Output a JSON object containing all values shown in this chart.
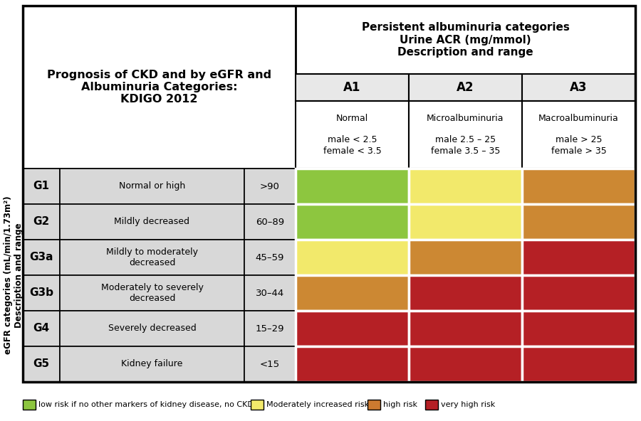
{
  "title_left": "Prognosis of CKD and by eGFR and\nAlbuminuria Categories:\nKDIGO 2012",
  "top_header": "Persistent albuminuria categories\nUrine ACR (mg/mmol)\nDescription and range",
  "col_headers": [
    "A1",
    "A2",
    "A3"
  ],
  "col_subheader1": [
    "Normal",
    "Microalbuminuria",
    "Macroalbuminuria"
  ],
  "col_subheader2": [
    "male < 2.5\nfemale < 3.5",
    "male 2.5 – 25\nfemale 3.5 – 35",
    "male > 25\nfemale > 35"
  ],
  "row_labels": [
    "G1",
    "G2",
    "G3a",
    "G3b",
    "G4",
    "G5"
  ],
  "row_desc": [
    "Normal or high",
    "Mildly decreased",
    "Mildly to moderately\ndecreased",
    "Moderately to severely\ndecreased",
    "Severely decreased",
    "Kidney failure"
  ],
  "row_range": [
    ">90",
    "60–89",
    "45–59",
    "30–44",
    "15–29",
    "<15"
  ],
  "y_axis_label": "eGFR categories (mL/min/1.73m²)\nDescription and range",
  "colors": {
    "green": "#8dc63f",
    "yellow": "#f2e96b",
    "orange": "#cc7a30",
    "dark_red": "#b52025",
    "light_orange": "#cc8833",
    "header_bg": "#e8e8e8",
    "border": "#000000",
    "white": "#ffffff",
    "row_bg": "#d8d8d8"
  },
  "cell_colors": [
    [
      "green",
      "yellow",
      "light_orange"
    ],
    [
      "green",
      "yellow",
      "light_orange"
    ],
    [
      "yellow",
      "light_orange",
      "dark_red"
    ],
    [
      "light_orange",
      "dark_red",
      "dark_red"
    ],
    [
      "dark_red",
      "dark_red",
      "dark_red"
    ],
    [
      "dark_red",
      "dark_red",
      "dark_red"
    ]
  ],
  "legend_items": [
    {
      "color": "#8dc63f",
      "label": "low risk if no other markers of kidney disease, no CKD)"
    },
    {
      "color": "#f2e96b",
      "label": "Moderately increased risk"
    },
    {
      "color": "#cc7a30",
      "label": "high risk"
    },
    {
      "color": "#b52025",
      "label": "very high risk"
    }
  ],
  "fig_width": 9.0,
  "fig_height": 5.92,
  "dpi": 100
}
